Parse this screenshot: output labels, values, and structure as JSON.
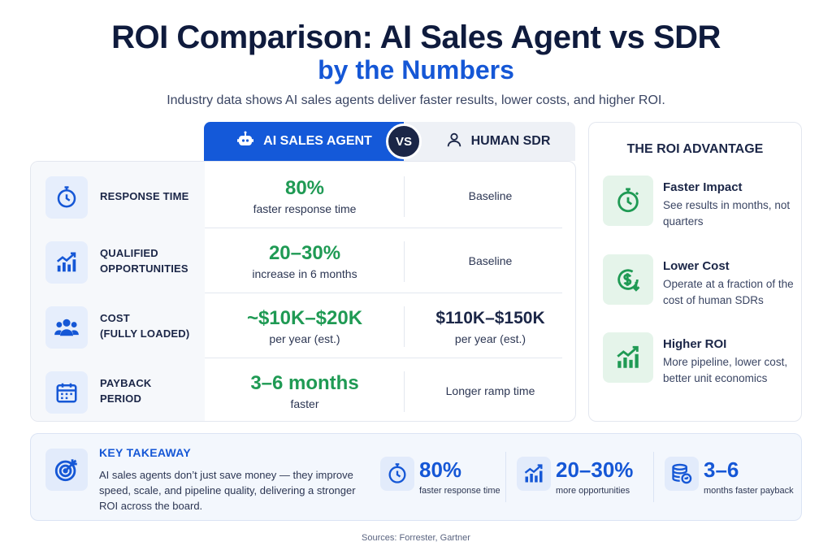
{
  "header": {
    "title": "ROI Comparison: AI Sales Agent vs SDR",
    "subtitle": "by the Numbers",
    "intro": "Industry data shows AI sales agents deliver faster results, lower costs, and higher ROI."
  },
  "columns": {
    "ai_label": "AI SALES AGENT",
    "vs_label": "VS",
    "sdr_label": "HUMAN SDR"
  },
  "rows": [
    {
      "metric_line1": "RESPONSE TIME",
      "metric_line2": "",
      "icon": "stopwatch-icon",
      "ai_value": "80%",
      "ai_note": "faster response time",
      "sdr_value": "",
      "sdr_note": "Baseline"
    },
    {
      "metric_line1": "QUALIFIED",
      "metric_line2": "OPPORTUNITIES",
      "icon": "growth-chart-icon",
      "ai_value": "20–30%",
      "ai_note": "increase in 6 months",
      "sdr_value": "",
      "sdr_note": "Baseline"
    },
    {
      "metric_line1": "COST",
      "metric_line2": "(FULLY LOADED)",
      "icon": "people-icon",
      "ai_value": "~$10K–$20K",
      "ai_note": "per year (est.)",
      "sdr_value": "$110K–$150K",
      "sdr_note": "per year (est.)"
    },
    {
      "metric_line1": "PAYBACK",
      "metric_line2": "PERIOD",
      "icon": "calendar-icon",
      "ai_value": "3–6 months",
      "ai_note": "faster",
      "sdr_value": "",
      "sdr_note": "Longer ramp time"
    }
  ],
  "roi_advantage": {
    "title": "THE ROI ADVANTAGE",
    "items": [
      {
        "head": "Faster Impact",
        "text": "See results in months, not quarters",
        "icon": "clock-icon"
      },
      {
        "head": "Lower Cost",
        "text": "Operate at a fraction of the cost of human SDRs",
        "icon": "dollar-down-icon"
      },
      {
        "head": "Higher ROI",
        "text": "More pipeline, lower cost, better unit economics",
        "icon": "bar-growth-icon"
      }
    ]
  },
  "takeaway": {
    "head": "KEY TAKEAWAY",
    "text": "AI sales agents don’t just save money — they improve speed, scale, and pipeline quality, delivering a stronger ROI across the board.",
    "stats": [
      {
        "value": "80%",
        "label": "faster response time",
        "icon": "stopwatch-icon"
      },
      {
        "value": "20–30%",
        "label": "more opportunities",
        "icon": "bar-growth-icon"
      },
      {
        "value": "3–6",
        "label": "months faster payback",
        "icon": "coins-icon"
      }
    ]
  },
  "sources": "Sources: Forrester, Gartner",
  "colors": {
    "brand_blue": "#1459d9",
    "accent_green": "#1f9a54",
    "navy": "#0f1b3d"
  }
}
